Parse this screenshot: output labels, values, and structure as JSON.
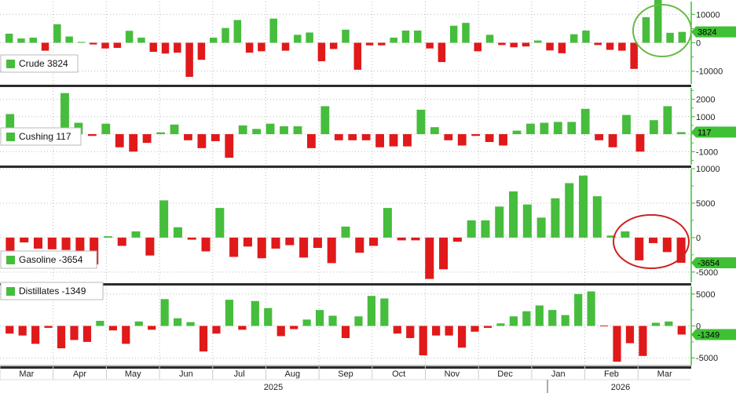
{
  "chart_data": [
    {
      "type": "bar",
      "legend": "Crude 3824",
      "last_label": "3824",
      "ylim": [
        -14500,
        14500
      ],
      "yticks": [
        10000,
        0,
        -10000
      ],
      "ytick_labels": [
        "10000",
        "0",
        "-10000"
      ],
      "values": [
        3200,
        1500,
        1800,
        -2800,
        6500,
        2200,
        300,
        -600,
        -2000,
        -1800,
        4200,
        1800,
        -3200,
        -3800,
        -3500,
        -12000,
        -6000,
        1800,
        5200,
        8000,
        -3500,
        -3000,
        8500,
        -2800,
        2800,
        3600,
        -6500,
        -2200,
        4600,
        -9500,
        -900,
        -900,
        1800,
        4300,
        4300,
        -2000,
        -6800,
        6000,
        7000,
        -3000,
        2800,
        -800,
        -1600,
        -1300,
        800,
        -2700,
        -3700,
        3000,
        4300,
        -800,
        -2500,
        -2800,
        -9200,
        9000,
        17200,
        3500,
        3824
      ],
      "circle_color": "#66bb44"
    },
    {
      "type": "bar",
      "legend": "Cushing 117",
      "last_label": "117",
      "ylim": [
        -1750,
        2650
      ],
      "yticks": [
        2000,
        1000,
        0,
        -1000
      ],
      "ytick_labels": [
        "2000",
        "1000",
        "0",
        "-1000"
      ],
      "values": [
        1150,
        0,
        -100,
        -100,
        2350,
        650,
        -100,
        600,
        -750,
        -1000,
        -500,
        100,
        550,
        -350,
        -800,
        -400,
        -1350,
        500,
        300,
        600,
        450,
        450,
        -800,
        1600,
        -350,
        -350,
        -350,
        -750,
        -700,
        -700,
        1400,
        400,
        -350,
        -650,
        -100,
        -450,
        -650,
        200,
        600,
        650,
        700,
        700,
        1450,
        -350,
        -750,
        1100,
        -1000,
        800,
        1600,
        117
      ],
      "circle_color": ""
    },
    {
      "type": "bar",
      "legend": "Gasoline -3654",
      "last_label": "-3654",
      "ylim": [
        -6500,
        10000
      ],
      "yticks": [
        10000,
        5000,
        0,
        -5000
      ],
      "ytick_labels": [
        "10000",
        "5000",
        "0",
        "-5000"
      ],
      "values": [
        -3500,
        -700,
        -1600,
        -1700,
        -1800,
        -2700,
        -3900,
        200,
        -1200,
        900,
        -2600,
        5400,
        1500,
        -300,
        -2000,
        4300,
        -2800,
        -1300,
        -3000,
        -1600,
        -1100,
        -2900,
        -1500,
        -3700,
        1600,
        -2200,
        -1200,
        4300,
        -400,
        -400,
        -6000,
        -4600,
        -600,
        2500,
        2500,
        4500,
        6700,
        4800,
        2900,
        5700,
        7900,
        9000,
        6000,
        300,
        900,
        -3300,
        -800,
        -2100,
        -3654
      ],
      "circle_color": "#cc2222"
    },
    {
      "type": "bar",
      "legend": "Distillates -1349",
      "last_label": "-1349",
      "ylim": [
        -6200,
        6200
      ],
      "yticks": [
        5000,
        0,
        -5000
      ],
      "ytick_labels": [
        "5000",
        "0",
        "-5000"
      ],
      "values": [
        -1200,
        -1500,
        -2800,
        -300,
        -3500,
        -2200,
        -2500,
        800,
        -700,
        -2800,
        700,
        -600,
        4200,
        1200,
        600,
        -4000,
        -1200,
        4100,
        -600,
        3900,
        2800,
        -1600,
        -500,
        1000,
        2500,
        1600,
        -1900,
        1500,
        4700,
        4300,
        -1200,
        -1900,
        -4600,
        -1500,
        -1500,
        -3400,
        -900,
        -300,
        400,
        1500,
        2300,
        3200,
        2500,
        1700,
        5000,
        5400,
        -100,
        -5600,
        -2700,
        -4700,
        500,
        700,
        -1349
      ],
      "circle_color": ""
    }
  ],
  "x_axis": {
    "months": [
      "Mar",
      "Apr",
      "May",
      "Jun",
      "Jul",
      "Aug",
      "Sep",
      "Oct",
      "Nov",
      "Dec",
      "Jan",
      "Feb",
      "Mar"
    ],
    "years": [
      "2025",
      "2026"
    ]
  },
  "colors": {
    "positive": "#46bd3c",
    "negative": "#e0191a",
    "axis_green": "#3fc035",
    "separator": "#2b2b2b",
    "grid": "#bbbbbb"
  }
}
